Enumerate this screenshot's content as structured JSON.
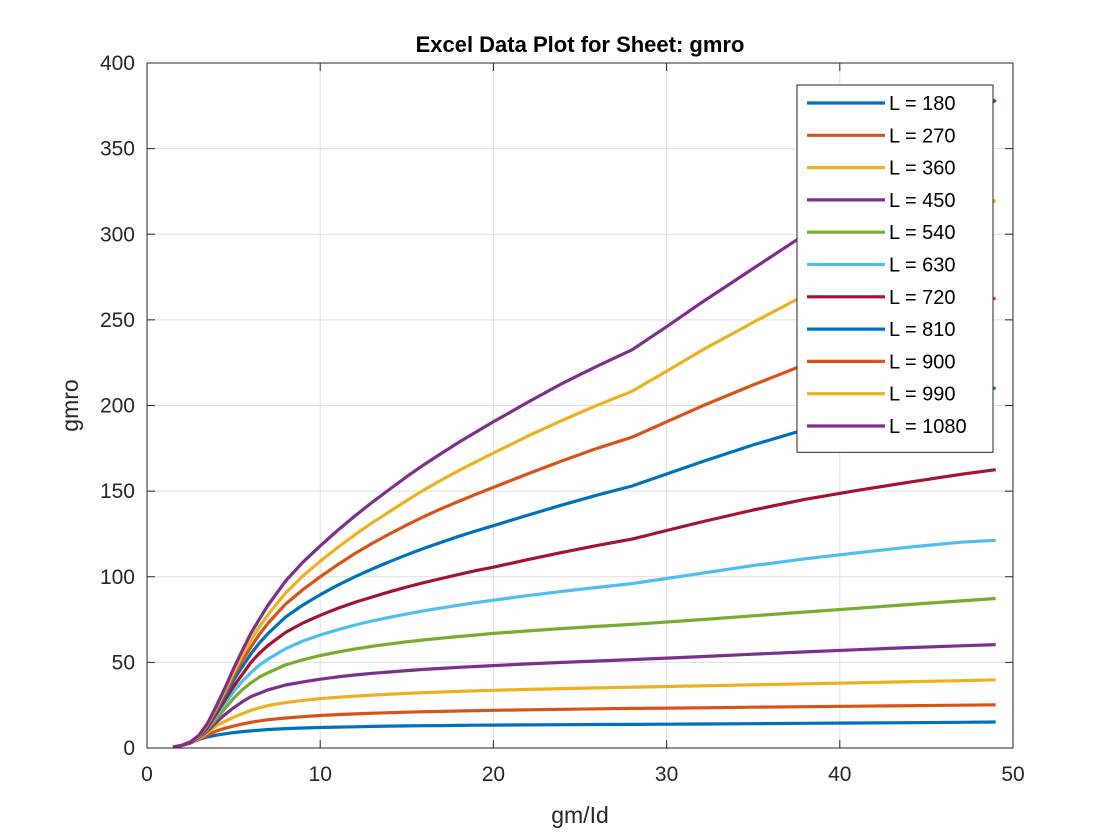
{
  "chart_data": {
    "type": "line",
    "title": "Excel Data Plot for Sheet: gmro",
    "xlabel": "gm/Id",
    "ylabel": "gmro",
    "xlim": [
      0,
      50
    ],
    "ylim": [
      0,
      400
    ],
    "xticks": [
      0,
      10,
      20,
      30,
      40,
      50
    ],
    "yticks": [
      0,
      50,
      100,
      150,
      200,
      250,
      300,
      350,
      400
    ],
    "grid": true,
    "box": true,
    "legend_position": "top-right",
    "x": [
      1.5,
      2,
      2.5,
      3,
      3.5,
      4,
      4.5,
      5,
      5.5,
      6,
      6.5,
      7,
      8,
      9,
      10,
      11,
      12,
      13,
      14,
      15,
      16,
      17,
      18,
      19,
      20,
      22,
      24,
      26,
      28,
      30,
      32,
      35,
      38,
      41,
      44,
      47,
      49
    ],
    "series": [
      {
        "name": "L = 180",
        "color": "#0072BD",
        "values": [
          0.5,
          1.5,
          3,
          5,
          6.5,
          7.5,
          8.3,
          9,
          9.6,
          10,
          10.4,
          10.8,
          11.3,
          11.7,
          12,
          12.2,
          12.4,
          12.6,
          12.8,
          12.9,
          13,
          13.1,
          13.2,
          13.3,
          13.4,
          13.5,
          13.6,
          13.7,
          13.8,
          13.9,
          14,
          14.2,
          14.4,
          14.6,
          14.8,
          15,
          15.2
        ]
      },
      {
        "name": "L = 270",
        "color": "#D95319",
        "values": [
          0.5,
          1.5,
          3,
          5,
          7.5,
          10,
          11.5,
          12.8,
          14,
          15,
          15.8,
          16.5,
          17.5,
          18.3,
          19,
          19.5,
          19.9,
          20.3,
          20.6,
          20.9,
          21.2,
          21.4,
          21.6,
          21.8,
          22,
          22.3,
          22.6,
          22.9,
          23.1,
          23.3,
          23.5,
          23.8,
          24.1,
          24.4,
          24.7,
          25,
          25.2
        ]
      },
      {
        "name": "L = 360",
        "color": "#EDB120",
        "values": [
          0.5,
          1.5,
          3,
          5.5,
          9,
          13,
          15.5,
          18,
          20,
          22,
          23.5,
          24.8,
          26.5,
          27.8,
          28.8,
          29.6,
          30.3,
          30.9,
          31.4,
          31.9,
          32.3,
          32.7,
          33.1,
          33.4,
          33.7,
          34.2,
          34.7,
          35.1,
          35.5,
          35.9,
          36.3,
          36.9,
          37.5,
          38.1,
          38.7,
          39.3,
          39.8
        ]
      },
      {
        "name": "L = 450",
        "color": "#7E2F8E",
        "values": [
          0.5,
          1.5,
          3,
          6,
          10,
          15,
          19.5,
          23.5,
          27,
          30,
          32,
          34,
          36.8,
          38.6,
          40.2,
          41.5,
          42.6,
          43.6,
          44.4,
          45.2,
          45.9,
          46.5,
          47.1,
          47.6,
          48.1,
          49.1,
          50,
          50.8,
          51.6,
          52.5,
          53.4,
          54.8,
          56.1,
          57.4,
          58.6,
          59.7,
          60.4
        ]
      },
      {
        "name": "L = 540",
        "color": "#77AC30",
        "values": [
          0.5,
          1.5,
          3,
          6,
          11,
          17,
          23,
          29,
          34,
          38,
          41.5,
          44,
          48.5,
          51.5,
          54,
          56,
          57.8,
          59.4,
          60.8,
          62,
          63.1,
          64.1,
          65.1,
          66,
          66.9,
          68.4,
          69.8,
          71,
          72.2,
          73.6,
          75,
          77.2,
          79.4,
          81.6,
          83.8,
          85.9,
          87.3
        ]
      },
      {
        "name": "L = 630",
        "color": "#4DBEEE",
        "values": [
          0.5,
          1.5,
          3,
          6,
          11.5,
          19,
          26,
          33,
          39,
          44,
          48.5,
          52,
          58,
          62.5,
          66,
          69,
          71.8,
          74.2,
          76.3,
          78.3,
          80.1,
          81.8,
          83.4,
          84.9,
          86.3,
          89,
          91.5,
          93.8,
          96,
          99,
          102,
          106.5,
          110.5,
          114,
          117.3,
          120.2,
          121.3
        ]
      },
      {
        "name": "L = 720",
        "color": "#A2142F",
        "values": [
          0.5,
          1.5,
          3,
          6.5,
          12,
          20,
          28,
          36,
          43,
          50,
          55.5,
          60,
          67.5,
          73,
          77.5,
          81.5,
          85,
          88.2,
          91.2,
          94,
          96.6,
          99,
          101.4,
          103.6,
          105.6,
          110,
          114.3,
          118.3,
          122,
          127,
          132,
          139,
          145.2,
          150.4,
          155.2,
          159.8,
          162.5
        ]
      },
      {
        "name": "L = 810",
        "color": "#0072BD",
        "values": [
          0.5,
          1.5,
          3.5,
          7,
          13,
          21.5,
          30,
          39.5,
          47.5,
          55,
          61.5,
          67,
          76.5,
          83.5,
          89.5,
          95,
          100,
          104.5,
          108.8,
          112.8,
          116.6,
          120.2,
          123.6,
          126.8,
          129.8,
          136,
          142,
          147.7,
          153,
          160,
          167,
          177,
          186,
          193.5,
          200.2,
          206.5,
          210.3
        ]
      },
      {
        "name": "L = 900",
        "color": "#D95319",
        "values": [
          0.5,
          1.5,
          3.5,
          7,
          13.5,
          22.5,
          32,
          42,
          51,
          59,
          66.5,
          73,
          84,
          92.5,
          100,
          107,
          113.5,
          119.5,
          125,
          130.2,
          135.2,
          139.8,
          144,
          148.2,
          152.2,
          160.2,
          167.8,
          175,
          181.5,
          190.5,
          199.5,
          212,
          224,
          234.5,
          244.5,
          255.2,
          262.8
        ]
      },
      {
        "name": "L = 990",
        "color": "#EDB120",
        "values": [
          0.5,
          1.5,
          3.5,
          7,
          14,
          23.5,
          33.5,
          44,
          54,
          63,
          71,
          78,
          90.5,
          100.5,
          109,
          117,
          124.5,
          131.5,
          138,
          144.5,
          150.8,
          156.5,
          162,
          167.2,
          172.2,
          182.2,
          191.5,
          200.2,
          208.3,
          220,
          232,
          248.5,
          264.5,
          278.5,
          292,
          309,
          319.8
        ]
      },
      {
        "name": "L = 1080",
        "color": "#7E2F8E",
        "values": [
          0.5,
          1.5,
          3.5,
          7.5,
          14.5,
          24.5,
          35,
          46.5,
          57,
          67,
          75.5,
          83.5,
          97.5,
          108.5,
          118,
          127,
          135.5,
          143.5,
          151,
          158.5,
          165.5,
          172,
          178.5,
          184.5,
          190.5,
          202,
          213,
          223,
          232.5,
          246,
          260,
          280,
          300,
          317.5,
          337,
          362,
          378.5
        ]
      }
    ]
  }
}
